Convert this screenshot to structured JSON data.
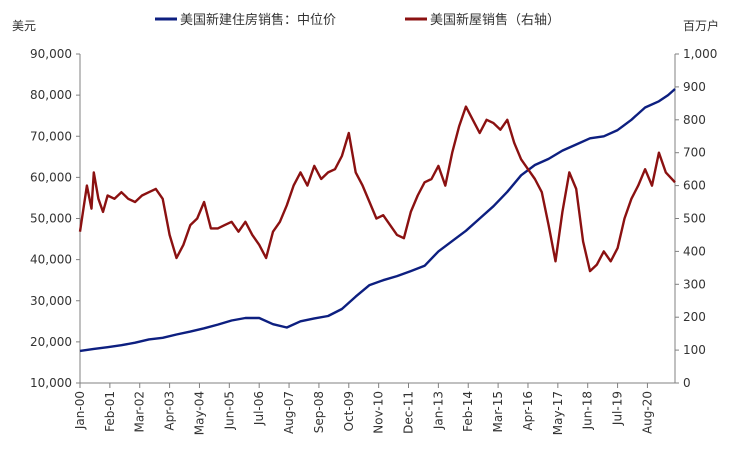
{
  "chart_data": {
    "type": "line",
    "title": "",
    "left_unit": "美元",
    "right_unit": "百万户",
    "y_left": {
      "min": 10000,
      "max": 90000,
      "step": 10000,
      "ticks": [
        "10,000",
        "20,000",
        "30,000",
        "40,000",
        "50,000",
        "60,000",
        "70,000",
        "80,000",
        "90,000"
      ]
    },
    "y_right": {
      "min": 0,
      "max": 1000,
      "step": 100,
      "ticks": [
        "0",
        "100",
        "200",
        "300",
        "400",
        "500",
        "600",
        "700",
        "800",
        "900",
        "1,000"
      ]
    },
    "x_labels": [
      "Jan-00",
      "Feb-01",
      "Mar-02",
      "Apr-03",
      "May-04",
      "Jun-05",
      "Jul-06",
      "Aug-07",
      "Sep-08",
      "Oct-09",
      "Nov-10",
      "Dec-11",
      "Jan-13",
      "Feb-14",
      "Mar-15",
      "Apr-16",
      "May-17",
      "Jun-18",
      "Jul-19",
      "Aug-20"
    ],
    "x_label_month_index": [
      0,
      13,
      26,
      39,
      52,
      65,
      78,
      91,
      104,
      117,
      130,
      143,
      156,
      169,
      182,
      195,
      208,
      221,
      234,
      247
    ],
    "x_range_months": [
      0,
      259
    ],
    "legend_position": "top",
    "series": [
      {
        "name": "美国新建住房销售：中位价",
        "axis": "left",
        "color": "#0D1F80",
        "points": [
          [
            0,
            17800
          ],
          [
            6,
            18300
          ],
          [
            12,
            18700
          ],
          [
            18,
            19200
          ],
          [
            24,
            19800
          ],
          [
            30,
            20600
          ],
          [
            36,
            21000
          ],
          [
            42,
            21800
          ],
          [
            48,
            22500
          ],
          [
            54,
            23300
          ],
          [
            60,
            24200
          ],
          [
            66,
            25200
          ],
          [
            72,
            25800
          ],
          [
            78,
            25800
          ],
          [
            84,
            24300
          ],
          [
            90,
            23500
          ],
          [
            96,
            25000
          ],
          [
            102,
            25700
          ],
          [
            108,
            26300
          ],
          [
            114,
            28000
          ],
          [
            120,
            31000
          ],
          [
            126,
            33800
          ],
          [
            132,
            35000
          ],
          [
            138,
            36000
          ],
          [
            144,
            37200
          ],
          [
            150,
            38500
          ],
          [
            156,
            42000
          ],
          [
            162,
            44500
          ],
          [
            168,
            47000
          ],
          [
            174,
            50000
          ],
          [
            180,
            53000
          ],
          [
            186,
            56500
          ],
          [
            192,
            60500
          ],
          [
            198,
            63000
          ],
          [
            204,
            64500
          ],
          [
            210,
            66500
          ],
          [
            216,
            68000
          ],
          [
            222,
            69500
          ],
          [
            228,
            70000
          ],
          [
            234,
            71500
          ],
          [
            240,
            74000
          ],
          [
            246,
            77000
          ],
          [
            252,
            78500
          ],
          [
            256,
            80000
          ],
          [
            259,
            81500
          ]
        ]
      },
      {
        "name": "美国新屋销售（右轴）",
        "axis": "right",
        "color": "#8B1111",
        "points": [
          [
            0,
            460
          ],
          [
            3,
            600
          ],
          [
            5,
            530
          ],
          [
            6,
            640
          ],
          [
            8,
            560
          ],
          [
            10,
            520
          ],
          [
            12,
            570
          ],
          [
            15,
            560
          ],
          [
            18,
            580
          ],
          [
            21,
            560
          ],
          [
            24,
            550
          ],
          [
            27,
            570
          ],
          [
            30,
            580
          ],
          [
            33,
            590
          ],
          [
            36,
            560
          ],
          [
            39,
            450
          ],
          [
            42,
            380
          ],
          [
            45,
            420
          ],
          [
            48,
            480
          ],
          [
            51,
            500
          ],
          [
            54,
            550
          ],
          [
            57,
            470
          ],
          [
            60,
            470
          ],
          [
            63,
            480
          ],
          [
            66,
            490
          ],
          [
            69,
            460
          ],
          [
            72,
            490
          ],
          [
            75,
            450
          ],
          [
            78,
            420
          ],
          [
            81,
            380
          ],
          [
            84,
            460
          ],
          [
            87,
            490
          ],
          [
            90,
            540
          ],
          [
            93,
            600
          ],
          [
            96,
            640
          ],
          [
            99,
            600
          ],
          [
            102,
            660
          ],
          [
            105,
            620
          ],
          [
            108,
            640
          ],
          [
            111,
            650
          ],
          [
            114,
            690
          ],
          [
            117,
            760
          ],
          [
            120,
            640
          ],
          [
            123,
            600
          ],
          [
            126,
            550
          ],
          [
            129,
            500
          ],
          [
            132,
            510
          ],
          [
            135,
            480
          ],
          [
            138,
            450
          ],
          [
            141,
            440
          ],
          [
            144,
            520
          ],
          [
            147,
            570
          ],
          [
            150,
            610
          ],
          [
            153,
            620
          ],
          [
            156,
            660
          ],
          [
            159,
            600
          ],
          [
            162,
            700
          ],
          [
            165,
            780
          ],
          [
            168,
            840
          ],
          [
            171,
            800
          ],
          [
            174,
            760
          ],
          [
            177,
            800
          ],
          [
            180,
            790
          ],
          [
            183,
            770
          ],
          [
            186,
            800
          ],
          [
            189,
            730
          ],
          [
            192,
            680
          ],
          [
            195,
            650
          ],
          [
            198,
            620
          ],
          [
            201,
            580
          ],
          [
            204,
            480
          ],
          [
            207,
            370
          ],
          [
            210,
            520
          ],
          [
            213,
            640
          ],
          [
            216,
            590
          ],
          [
            219,
            430
          ],
          [
            222,
            340
          ],
          [
            225,
            360
          ],
          [
            228,
            400
          ],
          [
            231,
            370
          ],
          [
            234,
            410
          ],
          [
            237,
            500
          ],
          [
            240,
            560
          ],
          [
            243,
            600
          ],
          [
            246,
            650
          ],
          [
            249,
            600
          ],
          [
            252,
            700
          ],
          [
            255,
            640
          ],
          [
            259,
            610
          ]
        ]
      }
    ]
  }
}
